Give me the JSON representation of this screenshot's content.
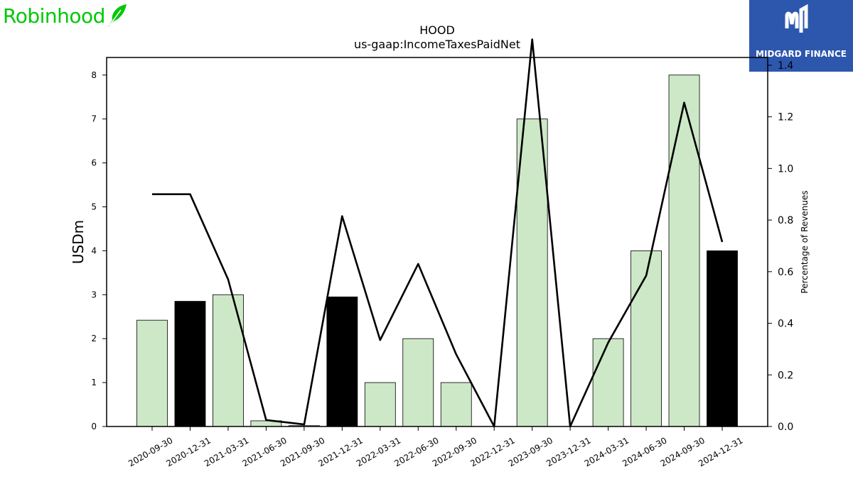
{
  "brand_left": {
    "name": "Robinhood",
    "icon": "feather-icon",
    "color": "#00c805"
  },
  "brand_right": {
    "name": "MIDGARD FINANCE",
    "icon": "midgard-logo-icon",
    "bg_color": "#2d57ad"
  },
  "chart_data": {
    "type": "bar",
    "title": "HOOD",
    "subtitle": "us-gaap:IncomeTaxesPaidNet",
    "ylabel": "USDm",
    "y2label": "Percentage of Revenues",
    "categories": [
      "2020-09-30",
      "2020-12-31",
      "2021-03-31",
      "2021-06-30",
      "2021-09-30",
      "2021-12-31",
      "2022-03-31",
      "2022-06-30",
      "2022-09-30",
      "2022-12-31",
      "2023-09-30",
      "2023-12-31",
      "2024-03-31",
      "2024-06-30",
      "2024-09-30",
      "2024-12-31"
    ],
    "series": [
      {
        "values": [
          2.42,
          2.85,
          3.0,
          0.13,
          0.02,
          2.95,
          1.0,
          2.0,
          1.0,
          0.0,
          7.0,
          0.0,
          2.0,
          4.0,
          8.0,
          4.0
        ],
        "colors": [
          "#cde8c7",
          "#000000",
          "#cde8c7",
          "#cde8c7",
          "#cde8c7",
          "#000000",
          "#cde8c7",
          "#cde8c7",
          "#cde8c7",
          "#cde8c7",
          "#cde8c7",
          "#cde8c7",
          "#cde8c7",
          "#cde8c7",
          "#cde8c7",
          "#000000"
        ]
      },
      {
        "values": [
          0.9,
          0.9,
          0.57,
          0.025,
          0.008,
          0.815,
          0.335,
          0.63,
          0.28,
          0.0,
          1.5,
          0.0,
          0.325,
          0.585,
          1.255,
          0.715
        ],
        "axis": "right"
      }
    ],
    "ylim": [
      0,
      8.4
    ],
    "y2lim": [
      0,
      1.43
    ],
    "yticks": [
      0,
      1,
      2,
      3,
      4,
      5,
      6,
      7,
      8
    ],
    "y2ticks": [
      "0.0",
      "0.2",
      "0.4",
      "0.6",
      "0.8",
      "1.0",
      "1.2",
      "1.4"
    ],
    "grid": false
  }
}
